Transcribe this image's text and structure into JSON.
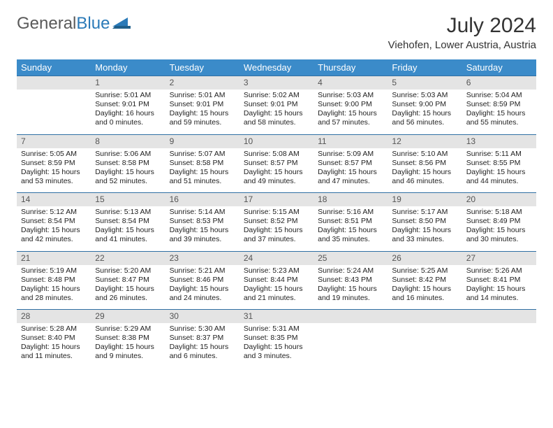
{
  "logo": {
    "part1": "General",
    "part2": "Blue"
  },
  "title": "July 2024",
  "location": "Viehofen, Lower Austria, Austria",
  "weekdays": [
    "Sunday",
    "Monday",
    "Tuesday",
    "Wednesday",
    "Thursday",
    "Friday",
    "Saturday"
  ],
  "colors": {
    "header_bg": "#3b8bc9",
    "header_text": "#ffffff",
    "daynum_bg": "#e4e4e4",
    "row_border": "#2f6fa3",
    "logo_gray": "#5a5a5a",
    "logo_blue": "#2a7ab8"
  },
  "weeks": [
    [
      null,
      {
        "n": "1",
        "sr": "5:01 AM",
        "ss": "9:01 PM",
        "dl": "16 hours and 0 minutes."
      },
      {
        "n": "2",
        "sr": "5:01 AM",
        "ss": "9:01 PM",
        "dl": "15 hours and 59 minutes."
      },
      {
        "n": "3",
        "sr": "5:02 AM",
        "ss": "9:01 PM",
        "dl": "15 hours and 58 minutes."
      },
      {
        "n": "4",
        "sr": "5:03 AM",
        "ss": "9:00 PM",
        "dl": "15 hours and 57 minutes."
      },
      {
        "n": "5",
        "sr": "5:03 AM",
        "ss": "9:00 PM",
        "dl": "15 hours and 56 minutes."
      },
      {
        "n": "6",
        "sr": "5:04 AM",
        "ss": "8:59 PM",
        "dl": "15 hours and 55 minutes."
      }
    ],
    [
      {
        "n": "7",
        "sr": "5:05 AM",
        "ss": "8:59 PM",
        "dl": "15 hours and 53 minutes."
      },
      {
        "n": "8",
        "sr": "5:06 AM",
        "ss": "8:58 PM",
        "dl": "15 hours and 52 minutes."
      },
      {
        "n": "9",
        "sr": "5:07 AM",
        "ss": "8:58 PM",
        "dl": "15 hours and 51 minutes."
      },
      {
        "n": "10",
        "sr": "5:08 AM",
        "ss": "8:57 PM",
        "dl": "15 hours and 49 minutes."
      },
      {
        "n": "11",
        "sr": "5:09 AM",
        "ss": "8:57 PM",
        "dl": "15 hours and 47 minutes."
      },
      {
        "n": "12",
        "sr": "5:10 AM",
        "ss": "8:56 PM",
        "dl": "15 hours and 46 minutes."
      },
      {
        "n": "13",
        "sr": "5:11 AM",
        "ss": "8:55 PM",
        "dl": "15 hours and 44 minutes."
      }
    ],
    [
      {
        "n": "14",
        "sr": "5:12 AM",
        "ss": "8:54 PM",
        "dl": "15 hours and 42 minutes."
      },
      {
        "n": "15",
        "sr": "5:13 AM",
        "ss": "8:54 PM",
        "dl": "15 hours and 41 minutes."
      },
      {
        "n": "16",
        "sr": "5:14 AM",
        "ss": "8:53 PM",
        "dl": "15 hours and 39 minutes."
      },
      {
        "n": "17",
        "sr": "5:15 AM",
        "ss": "8:52 PM",
        "dl": "15 hours and 37 minutes."
      },
      {
        "n": "18",
        "sr": "5:16 AM",
        "ss": "8:51 PM",
        "dl": "15 hours and 35 minutes."
      },
      {
        "n": "19",
        "sr": "5:17 AM",
        "ss": "8:50 PM",
        "dl": "15 hours and 33 minutes."
      },
      {
        "n": "20",
        "sr": "5:18 AM",
        "ss": "8:49 PM",
        "dl": "15 hours and 30 minutes."
      }
    ],
    [
      {
        "n": "21",
        "sr": "5:19 AM",
        "ss": "8:48 PM",
        "dl": "15 hours and 28 minutes."
      },
      {
        "n": "22",
        "sr": "5:20 AM",
        "ss": "8:47 PM",
        "dl": "15 hours and 26 minutes."
      },
      {
        "n": "23",
        "sr": "5:21 AM",
        "ss": "8:46 PM",
        "dl": "15 hours and 24 minutes."
      },
      {
        "n": "24",
        "sr": "5:23 AM",
        "ss": "8:44 PM",
        "dl": "15 hours and 21 minutes."
      },
      {
        "n": "25",
        "sr": "5:24 AM",
        "ss": "8:43 PM",
        "dl": "15 hours and 19 minutes."
      },
      {
        "n": "26",
        "sr": "5:25 AM",
        "ss": "8:42 PM",
        "dl": "15 hours and 16 minutes."
      },
      {
        "n": "27",
        "sr": "5:26 AM",
        "ss": "8:41 PM",
        "dl": "15 hours and 14 minutes."
      }
    ],
    [
      {
        "n": "28",
        "sr": "5:28 AM",
        "ss": "8:40 PM",
        "dl": "15 hours and 11 minutes."
      },
      {
        "n": "29",
        "sr": "5:29 AM",
        "ss": "8:38 PM",
        "dl": "15 hours and 9 minutes."
      },
      {
        "n": "30",
        "sr": "5:30 AM",
        "ss": "8:37 PM",
        "dl": "15 hours and 6 minutes."
      },
      {
        "n": "31",
        "sr": "5:31 AM",
        "ss": "8:35 PM",
        "dl": "15 hours and 3 minutes."
      },
      null,
      null,
      null
    ]
  ],
  "labels": {
    "sunrise": "Sunrise: ",
    "sunset": "Sunset: ",
    "daylight": "Daylight: "
  }
}
